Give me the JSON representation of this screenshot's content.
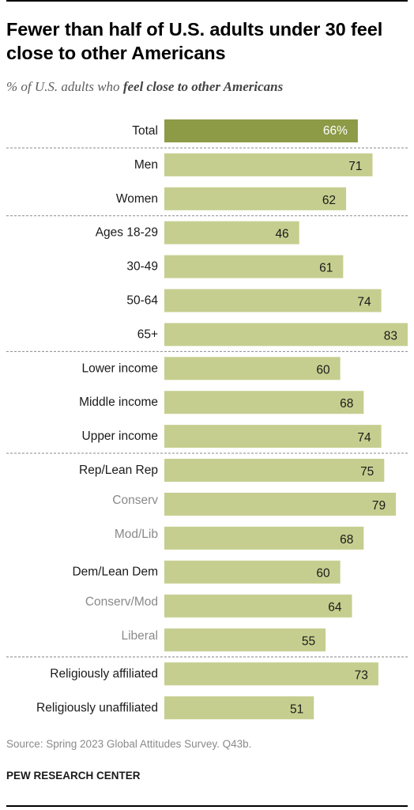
{
  "title": "Fewer than half of U.S. adults under 30 feel close to other Americans",
  "subtitle_prefix": "% of U.S. adults who ",
  "subtitle_emphasis": "feel close to other Americans",
  "source": "Source: Spring 2023 Global Attitudes Survey. Q43b.",
  "brand": "PEW RESEARCH CENTER",
  "colors": {
    "total_bar": "#8d9a46",
    "bar": "#c6ce8f",
    "label": "#1a1a1a",
    "sublabel": "#8a8a8a",
    "divider": "#8a8a8a"
  },
  "chart_data": {
    "type": "bar",
    "orientation": "horizontal",
    "title": "Fewer than half of U.S. adults under 30 feel close to other Americans",
    "xlim": [
      0,
      83
    ],
    "categories": [
      "Total",
      "Men",
      "Women",
      "Ages 18-29",
      "30-49",
      "50-64",
      "65+",
      "Lower income",
      "Middle income",
      "Upper income",
      "Rep/Lean Rep",
      "Conserv",
      "Mod/Lib",
      "Dem/Lean Dem",
      "Conserv/Mod",
      "Liberal",
      "Religiously affiliated",
      "Religiously unaffiliated"
    ],
    "values": [
      66,
      71,
      62,
      46,
      61,
      74,
      83,
      60,
      68,
      74,
      75,
      79,
      68,
      60,
      64,
      55,
      73,
      51
    ],
    "value_labels": [
      "66%",
      "71",
      "62",
      "46",
      "61",
      "74",
      "83",
      "60",
      "68",
      "74",
      "75",
      "79",
      "68",
      "60",
      "64",
      "55",
      "73",
      "51"
    ],
    "highlighted": [
      "Total"
    ],
    "sub_categories": [
      "Conserv",
      "Mod/Lib",
      "Conserv/Mod",
      "Liberal"
    ],
    "groups": [
      [
        "Total"
      ],
      [
        "Men",
        "Women"
      ],
      [
        "Ages 18-29",
        "30-49",
        "50-64",
        "65+"
      ],
      [
        "Lower income",
        "Middle income",
        "Upper income"
      ],
      [
        "Rep/Lean Rep",
        "Conserv",
        "Mod/Lib",
        "Dem/Lean Dem",
        "Conserv/Mod",
        "Liberal"
      ],
      [
        "Religiously affiliated",
        "Religiously unaffiliated"
      ]
    ]
  }
}
